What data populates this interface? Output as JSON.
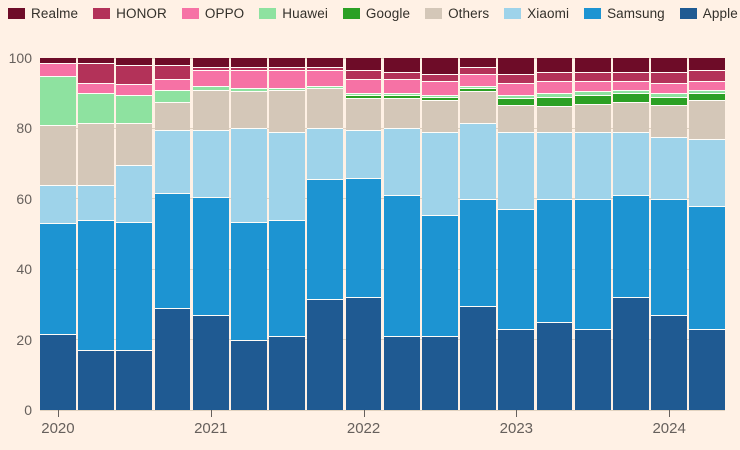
{
  "legend": {
    "items": [
      {
        "label": "Realme",
        "color": "#6E0C28"
      },
      {
        "label": "HONOR",
        "color": "#B33259"
      },
      {
        "label": "OPPO",
        "color": "#F672A5"
      },
      {
        "label": "Huawei",
        "color": "#8EE2A0"
      },
      {
        "label": "Google",
        "color": "#2BA024"
      },
      {
        "label": "Others",
        "color": "#D4C7B8"
      },
      {
        "label": "Xiaomi",
        "color": "#9ED3EA"
      },
      {
        "label": "Samsung",
        "color": "#1D94D2"
      },
      {
        "label": "Apple",
        "color": "#1F5A92"
      }
    ]
  },
  "chart_data": {
    "type": "bar",
    "subtype": "stacked-100-percent",
    "title": "",
    "xlabel": "",
    "ylabel": "",
    "ylim": [
      0,
      100
    ],
    "y_ticks": [
      "0",
      "20",
      "40",
      "60",
      "80",
      "100"
    ],
    "y_tick_values": [
      0,
      20,
      40,
      60,
      80,
      100
    ],
    "grid": true,
    "legend_position": "top",
    "categories": [
      "2020 Q1",
      "2020 Q2",
      "2020 Q3",
      "2020 Q4",
      "2021 Q1",
      "2021 Q2",
      "2021 Q3",
      "2021 Q4",
      "2022 Q1",
      "2022 Q2",
      "2022 Q3",
      "2022 Q4",
      "2023 Q1",
      "2023 Q2",
      "2023 Q3",
      "2023 Q4",
      "2024 Q1",
      "2024 Q2"
    ],
    "x_axis_year_ticks": [
      {
        "label": "2020",
        "category_index": 0
      },
      {
        "label": "2021",
        "category_index": 4
      },
      {
        "label": "2022",
        "category_index": 8
      },
      {
        "label": "2023",
        "category_index": 12
      },
      {
        "label": "2024",
        "category_index": 16
      }
    ],
    "stack_order_note": "series listed top-to-bottom as stacked in each bar",
    "series": [
      {
        "name": "Realme",
        "color": "#6E0C28",
        "values": [
          1.5,
          1.5,
          2,
          2,
          2.5,
          2.5,
          2.5,
          2.5,
          3.5,
          4,
          4.5,
          2.5,
          4.5,
          4,
          4,
          4,
          4,
          3.5
        ]
      },
      {
        "name": "HONOR",
        "color": "#B33259",
        "values": [
          0,
          5.5,
          5.5,
          4,
          1,
          1,
          1,
          1,
          2.5,
          2,
          2,
          2,
          2.5,
          2.5,
          2.5,
          2.5,
          3,
          3
        ]
      },
      {
        "name": "OPPO",
        "color": "#F672A5",
        "values": [
          3.5,
          3,
          3,
          3,
          4.5,
          5,
          5,
          4.5,
          4,
          4,
          4,
          3.5,
          3.5,
          3.5,
          3,
          2.5,
          3,
          2.5
        ]
      },
      {
        "name": "Huawei",
        "color": "#8EE2A0",
        "values": [
          14,
          8.5,
          8,
          3.5,
          1,
          1,
          0.5,
          0.5,
          0.5,
          0.5,
          0.5,
          0.5,
          1,
          1,
          1,
          1,
          1,
          1
        ]
      },
      {
        "name": "Google",
        "color": "#2BA024",
        "values": [
          0,
          0,
          0,
          0,
          0,
          0,
          0,
          0,
          1,
          1,
          1,
          1,
          2,
          2.5,
          2.5,
          2.5,
          2.5,
          2
        ]
      },
      {
        "name": "Others",
        "color": "#D4C7B8",
        "values": [
          17,
          17.5,
          12,
          8,
          11.5,
          10.5,
          12,
          11.5,
          9,
          8.5,
          9,
          9,
          7.5,
          7.5,
          8,
          8.5,
          9,
          11
        ]
      },
      {
        "name": "Xiaomi",
        "color": "#9ED3EA",
        "values": [
          11,
          10,
          16,
          18,
          19,
          26.5,
          25,
          14.5,
          13.5,
          19,
          23.5,
          21.5,
          22,
          19,
          19,
          18,
          17.5,
          19
        ]
      },
      {
        "name": "Samsung",
        "color": "#1D94D2",
        "values": [
          31.5,
          37,
          36.5,
          32.5,
          33.5,
          33.5,
          33,
          34,
          34,
          40,
          34.5,
          30.5,
          34,
          35,
          37,
          29,
          33,
          35
        ]
      },
      {
        "name": "Apple",
        "color": "#1F5A92",
        "values": [
          21.5,
          17,
          17,
          29,
          27,
          20,
          21,
          31.5,
          32,
          21,
          21,
          29.5,
          23,
          25,
          23,
          32,
          27,
          23
        ]
      }
    ]
  },
  "colors": {
    "background": "#FFF1E5",
    "axis_text": "#66605C",
    "legend_text": "#33302A",
    "gridline": "#E2D3C0",
    "segment_separator": "#FFFDF8"
  }
}
